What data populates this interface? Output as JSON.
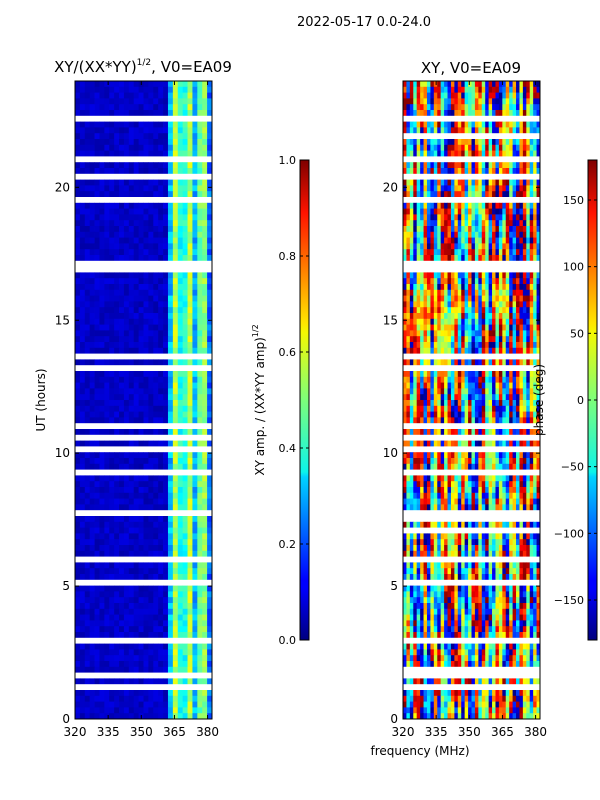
{
  "figure": {
    "suptitle": "2022-05-17 0.0-24.0",
    "shared_xlabel": "frequency (MHz)"
  },
  "chart_data": [
    {
      "type": "heatmap",
      "title": "XY/(XX*YY)$^{1/2}$, V0=EA09",
      "title_main": "XY/(XX*YY)",
      "title_sup": "1/2",
      "title_tail": ", V0=EA09",
      "xlabel": "frequency (MHz)",
      "ylabel": "UT (hours)",
      "xlim": [
        320,
        382
      ],
      "ylim": [
        0,
        24
      ],
      "xticks": [
        320,
        335,
        350,
        365,
        380
      ],
      "yticks": [
        0,
        5,
        10,
        15,
        20
      ],
      "colormap": "jet",
      "colorbar": {
        "label": "XY amp. / (XX*YY amp)$^{1/2}$",
        "label_main": "XY amp. / (XX*YY amp)",
        "label_sup": "1/2",
        "range": [
          0.0,
          1.0
        ],
        "ticks": [
          "0.0",
          "0.2",
          "0.4",
          "0.6",
          "0.8",
          "1.0"
        ]
      },
      "description": "Mostly low amplitude (~0.05) below ~360 MHz, higher amplitude (0.3-0.6) banded structure between ~360-382 MHz; many flagged (white) time rows"
    },
    {
      "type": "heatmap",
      "title": "XY, V0=EA09",
      "xlabel": "frequency (MHz)",
      "ylabel": "",
      "xlim": [
        320,
        382
      ],
      "ylim": [
        0,
        24
      ],
      "xticks": [
        320,
        335,
        350,
        365,
        380
      ],
      "yticks": [
        0,
        5,
        10,
        15,
        20
      ],
      "colormap": "jet",
      "colorbar": {
        "label": "phase (deg)",
        "range": [
          -180,
          180
        ],
        "ticks": [
          "−150",
          "−100",
          "−50",
          "0",
          "50",
          "100",
          "150"
        ]
      },
      "description": "Noisy phase values spanning -180 to 180 deg with many flagged (white) time rows"
    }
  ],
  "colors": {
    "background": "#ffffff",
    "axis": "#000000",
    "flag": "#ffffff"
  }
}
